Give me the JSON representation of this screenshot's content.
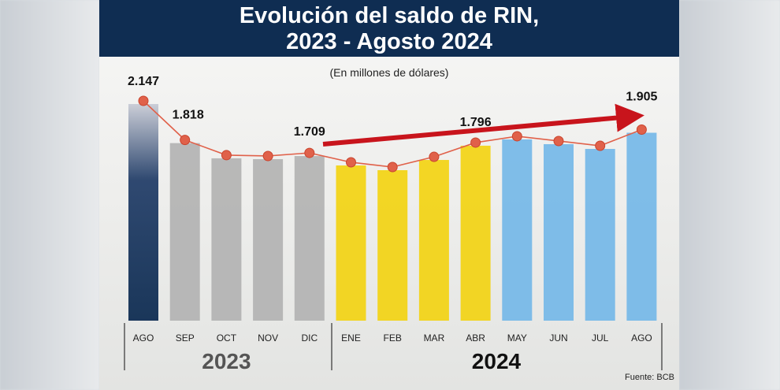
{
  "chart_data": {
    "type": "bar",
    "title": "Evolución del saldo de RIN, 2023 - Agosto 2024",
    "title_lines": [
      "Evolución del saldo de RIN,",
      "2023 - Agosto 2024"
    ],
    "subtitle": "(En millones de dólares)",
    "source": "Fuente: BCB",
    "categories": [
      "AGO",
      "SEP",
      "OCT",
      "NOV",
      "DIC",
      "ENE",
      "FEB",
      "MAR",
      "ABR",
      "MAY",
      "JUN",
      "JUL",
      "AGO"
    ],
    "year_groups": [
      {
        "label": "2023",
        "count": 5
      },
      {
        "label": "2024",
        "count": 8
      }
    ],
    "values": [
      2147,
      1818,
      1690,
      1683,
      1709,
      1630,
      1590,
      1676,
      1796,
      1849,
      1809,
      1769,
      1905
    ],
    "data_labels": [
      "2.147",
      "1.818",
      "",
      "",
      "1.709",
      "",
      "",
      "",
      "1.796",
      "",
      "",
      "",
      "1.905"
    ],
    "bar_colors": [
      "#0f2d52",
      "#b4b4b4",
      "#b4b4b4",
      "#b4b4b4",
      "#b4b4b4",
      "#f2d419",
      "#f2d419",
      "#f2d419",
      "#f2d419",
      "#78b9e8",
      "#78b9e8",
      "#78b9e8",
      "#78b9e8"
    ],
    "line_color": "#e0614a",
    "arrow_color": "#c8141c",
    "trend_arrow": "upward from DIC 2023 to AGO 2024",
    "grid": false,
    "legend": "none"
  }
}
